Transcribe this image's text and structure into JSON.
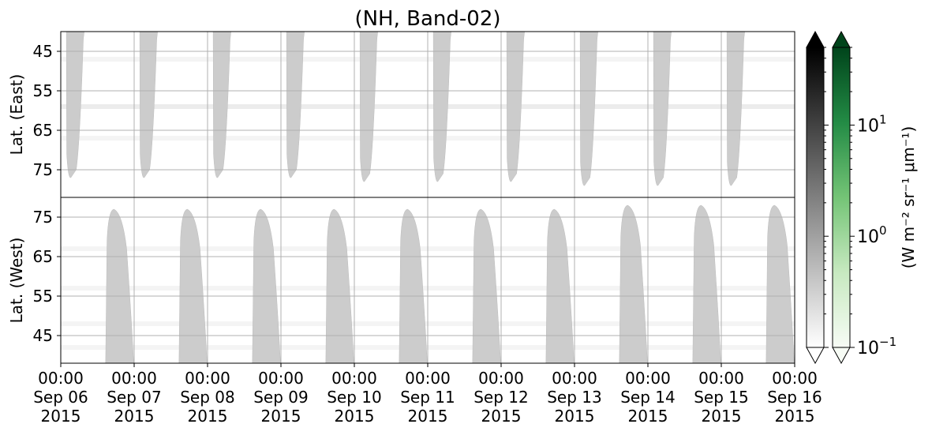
{
  "chart_data": {
    "type": "heatmap",
    "title": "(NH, Band-02)",
    "x_ticks": [
      {
        "time": "00:00",
        "date": "Sep 06",
        "year": "2015"
      },
      {
        "time": "00:00",
        "date": "Sep 07",
        "year": "2015"
      },
      {
        "time": "00:00",
        "date": "Sep 08",
        "year": "2015"
      },
      {
        "time": "00:00",
        "date": "Sep 09",
        "year": "2015"
      },
      {
        "time": "00:00",
        "date": "Sep 10",
        "year": "2015"
      },
      {
        "time": "00:00",
        "date": "Sep 11",
        "year": "2015"
      },
      {
        "time": "00:00",
        "date": "Sep 12",
        "year": "2015"
      },
      {
        "time": "00:00",
        "date": "Sep 13",
        "year": "2015"
      },
      {
        "time": "00:00",
        "date": "Sep 14",
        "year": "2015"
      },
      {
        "time": "00:00",
        "date": "Sep 15",
        "year": "2015"
      },
      {
        "time": "00:00",
        "date": "Sep 16",
        "year": "2015"
      }
    ],
    "x_range": [
      "2015-09-06 00:00",
      "2015-09-16 00:00"
    ],
    "panels": [
      {
        "name": "east",
        "ylabel": "Lat. (East)",
        "ylim": [
          40,
          82
        ],
        "y_inverted": true,
        "yticks": [
          45,
          55,
          65,
          75
        ],
        "lit_regions": [
          {
            "start": "2015-09-06 01:50",
            "end": "2015-09-06 07:40",
            "min_lat": 77
          },
          {
            "start": "2015-09-07 01:50",
            "end": "2015-09-07 07:40",
            "min_lat": 77
          },
          {
            "start": "2015-09-08 01:50",
            "end": "2015-09-08 07:40",
            "min_lat": 77
          },
          {
            "start": "2015-09-09 01:50",
            "end": "2015-09-09 07:40",
            "min_lat": 77
          },
          {
            "start": "2015-09-10 01:50",
            "end": "2015-09-10 07:40",
            "min_lat": 78
          },
          {
            "start": "2015-09-11 01:50",
            "end": "2015-09-11 07:40",
            "min_lat": 78
          },
          {
            "start": "2015-09-12 01:50",
            "end": "2015-09-12 07:40",
            "min_lat": 78
          },
          {
            "start": "2015-09-13 01:50",
            "end": "2015-09-13 07:40",
            "min_lat": 79
          },
          {
            "start": "2015-09-14 01:50",
            "end": "2015-09-14 07:40",
            "min_lat": 79
          },
          {
            "start": "2015-09-15 01:50",
            "end": "2015-09-15 07:40",
            "min_lat": 79
          }
        ]
      },
      {
        "name": "west",
        "ylabel": "Lat. (West)",
        "ylim": [
          38,
          80
        ],
        "y_inverted": false,
        "yticks": [
          45,
          55,
          65,
          75
        ],
        "lit_regions": [
          {
            "start": "2015-09-06 14:40",
            "end": "2015-09-06 23:50",
            "max_lat": 77
          },
          {
            "start": "2015-09-07 14:40",
            "end": "2015-09-07 23:50",
            "max_lat": 77
          },
          {
            "start": "2015-09-08 14:40",
            "end": "2015-09-08 23:50",
            "max_lat": 77
          },
          {
            "start": "2015-09-09 14:40",
            "end": "2015-09-09 23:50",
            "max_lat": 77
          },
          {
            "start": "2015-09-10 14:40",
            "end": "2015-09-10 23:50",
            "max_lat": 77
          },
          {
            "start": "2015-09-11 14:40",
            "end": "2015-09-11 23:50",
            "max_lat": 77
          },
          {
            "start": "2015-09-12 14:40",
            "end": "2015-09-12 23:50",
            "max_lat": 77
          },
          {
            "start": "2015-09-13 14:40",
            "end": "2015-09-13 23:50",
            "max_lat": 78
          },
          {
            "start": "2015-09-14 14:40",
            "end": "2015-09-14 23:50",
            "max_lat": 78
          },
          {
            "start": "2015-09-15 14:40",
            "end": "2015-09-15 23:50",
            "max_lat": 78
          }
        ]
      }
    ],
    "grid": true,
    "colorbar": {
      "label": "(W m⁻² sr⁻¹ μm⁻¹)",
      "scale": "log",
      "range": [
        0.1,
        50
      ],
      "ticks": [
        {
          "value": 10,
          "base": "10",
          "exp": "1"
        },
        {
          "value": 1,
          "base": "10",
          "exp": "0"
        },
        {
          "value": 0.1,
          "base": "10",
          "exp": "−1"
        }
      ],
      "colormaps": [
        "Greys",
        "Greens"
      ],
      "colors": {
        "greys_low": "#ffffff",
        "greys_high": "#000000",
        "greens_low": "#f7fcf5",
        "greens_high": "#00441b",
        "lit": "#cccccc",
        "faint": "#ececec",
        "grid": "#b0b0b0"
      }
    }
  }
}
